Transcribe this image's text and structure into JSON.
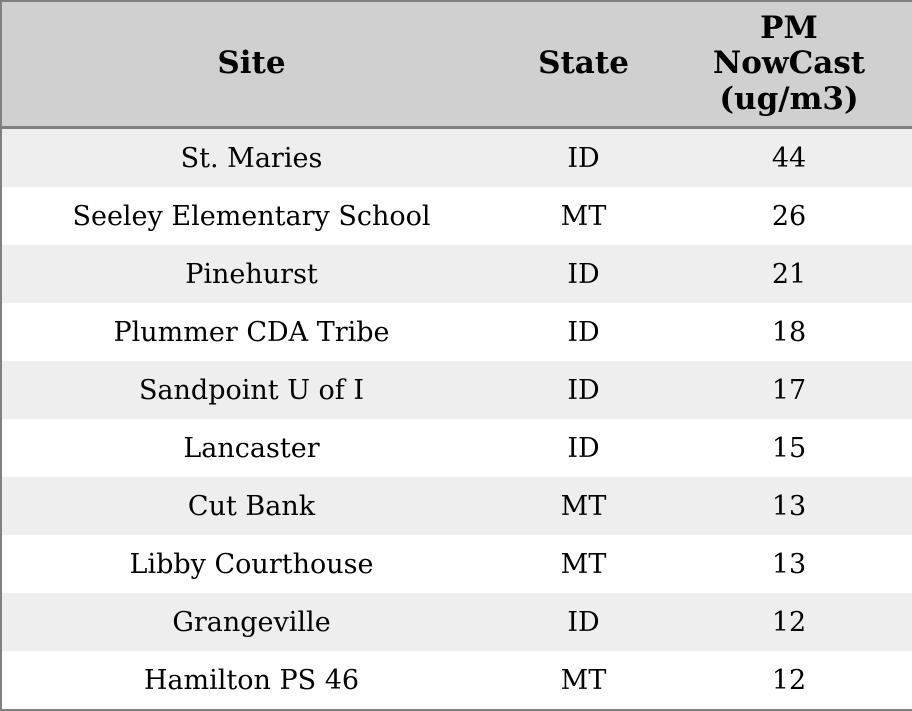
{
  "table": {
    "columns": [
      {
        "key": "site",
        "label": "Site"
      },
      {
        "key": "state",
        "label": "State"
      },
      {
        "key": "pm",
        "label": "PM\nNowCast\n(ug/m3)"
      }
    ],
    "rows": [
      {
        "site": "St. Maries",
        "state": "ID",
        "pm": "44"
      },
      {
        "site": "Seeley Elementary School",
        "state": "MT",
        "pm": "26"
      },
      {
        "site": "Pinehurst",
        "state": "ID",
        "pm": "21"
      },
      {
        "site": "Plummer CDA Tribe",
        "state": "ID",
        "pm": "18"
      },
      {
        "site": "Sandpoint U of I",
        "state": "ID",
        "pm": "17"
      },
      {
        "site": "Lancaster",
        "state": "ID",
        "pm": "15"
      },
      {
        "site": "Cut Bank",
        "state": "MT",
        "pm": "13"
      },
      {
        "site": "Libby Courthouse",
        "state": "MT",
        "pm": "13"
      },
      {
        "site": "Grangeville",
        "state": "ID",
        "pm": "12"
      },
      {
        "site": "Hamilton PS 46",
        "state": "MT",
        "pm": "12"
      }
    ]
  },
  "colors": {
    "outer_border": "#808080",
    "header_bg": "#d0d0d0",
    "row_stripe_bg": "#eeeeee",
    "row_bg": "#ffffff",
    "text": "#000000"
  },
  "chart_data": {
    "type": "table",
    "title": "",
    "columns": [
      "Site",
      "State",
      "PM NowCast (ug/m3)"
    ],
    "rows": [
      [
        "St. Maries",
        "ID",
        44
      ],
      [
        "Seeley Elementary School",
        "MT",
        26
      ],
      [
        "Pinehurst",
        "ID",
        21
      ],
      [
        "Plummer CDA Tribe",
        "ID",
        18
      ],
      [
        "Sandpoint U of I",
        "ID",
        17
      ],
      [
        "Lancaster",
        "ID",
        15
      ],
      [
        "Cut Bank",
        "MT",
        13
      ],
      [
        "Libby Courthouse",
        "MT",
        13
      ],
      [
        "Grangeville",
        "ID",
        12
      ],
      [
        "Hamilton PS 46",
        "MT",
        12
      ]
    ]
  }
}
